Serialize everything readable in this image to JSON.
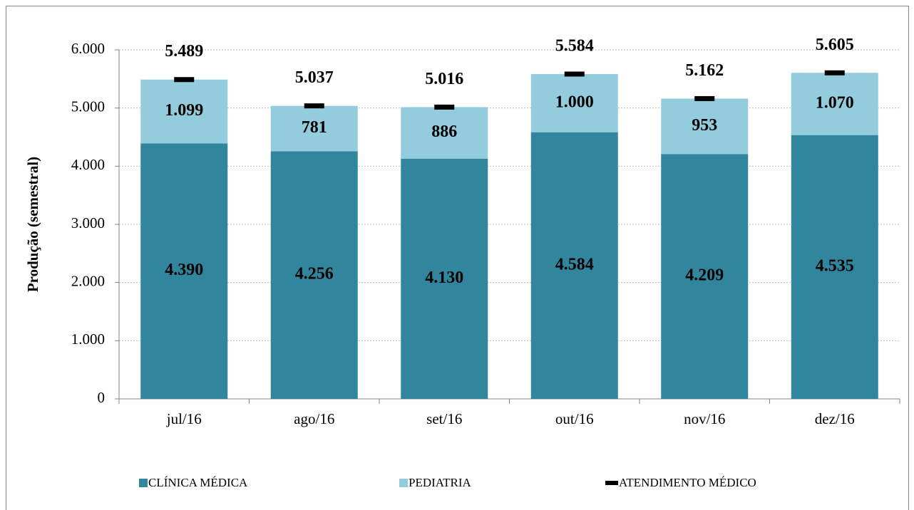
{
  "chart_data": {
    "type": "bar",
    "stacked": true,
    "ylabel": "Produção (semestral)",
    "categories": [
      "jul/16",
      "ago/16",
      "set/16",
      "out/16",
      "nov/16",
      "dez/16"
    ],
    "series": [
      {
        "name": "CLÍNICA MÉDICA",
        "color": "#31859c",
        "label_color": "#ffff00",
        "kind": "bar",
        "values": [
          4390,
          4256,
          4130,
          4584,
          4209,
          4535
        ],
        "value_labels": [
          "4.390",
          "4.256",
          "4.130",
          "4.584",
          "4.209",
          "4.535"
        ]
      },
      {
        "name": "PEDIATRIA",
        "color": "#93cddd",
        "label_color": "#1f3f6a",
        "kind": "bar",
        "values": [
          1099,
          781,
          886,
          1000,
          953,
          1070
        ],
        "value_labels": [
          "1.099",
          "781",
          "886",
          "1.000",
          "953",
          "1.070"
        ]
      },
      {
        "name": "ATENDIMENTO MÉDICO",
        "color": "#000000",
        "label_color": "#262626",
        "kind": "marker",
        "values": [
          5489,
          5037,
          5016,
          5584,
          5162,
          5605
        ],
        "value_labels": [
          "5.489",
          "5.037",
          "5.016",
          "5.584",
          "5.162",
          "5.605"
        ]
      }
    ],
    "ylim": [
      0,
      6000
    ],
    "yticks": [
      0,
      {
        "value": 1000,
        "label": "1.000"
      },
      {
        "value": 2000,
        "label": "2.000"
      },
      {
        "value": 3000,
        "label": "3.000"
      },
      {
        "value": 4000,
        "label": "4.000"
      },
      {
        "value": 5000,
        "label": "5.000"
      },
      {
        "value": 6000,
        "label": "6.000"
      }
    ],
    "grid": true,
    "legend": "bottom"
  }
}
